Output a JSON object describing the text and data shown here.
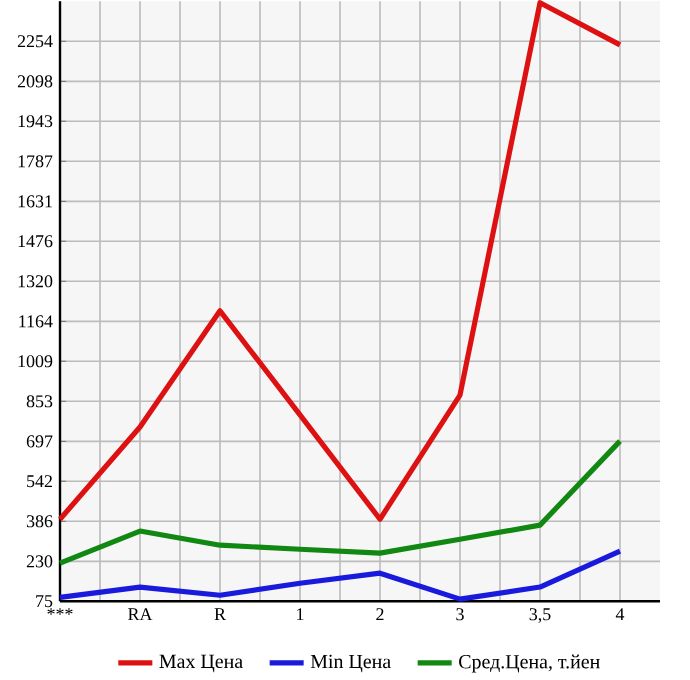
{
  "chart_data": {
    "type": "line",
    "categories": [
      "***",
      "RA",
      "R",
      "1",
      "2",
      "3",
      "3,5",
      "4"
    ],
    "series": [
      {
        "name": "Max Цена",
        "color": "#dd1111",
        "values": [
          394,
          753,
          1205,
          800,
          394,
          877,
          2404,
          2240
        ]
      },
      {
        "name": "Min Цена",
        "color": "#1a1add",
        "values": [
          90,
          130,
          98,
          145,
          184,
          83,
          130,
          270
        ]
      },
      {
        "name": "Сред.Цена, т.йен",
        "color": "#118811",
        "values": [
          223,
          348,
          293,
          277,
          262,
          316,
          371,
          698
        ]
      }
    ],
    "ylim": [
      75,
      2410
    ],
    "yticks": [
      75,
      230,
      386,
      542,
      697,
      853,
      1009,
      1164,
      1320,
      1476,
      1631,
      1787,
      1943,
      2098,
      2254
    ],
    "grid": true,
    "legend": "bottom"
  }
}
